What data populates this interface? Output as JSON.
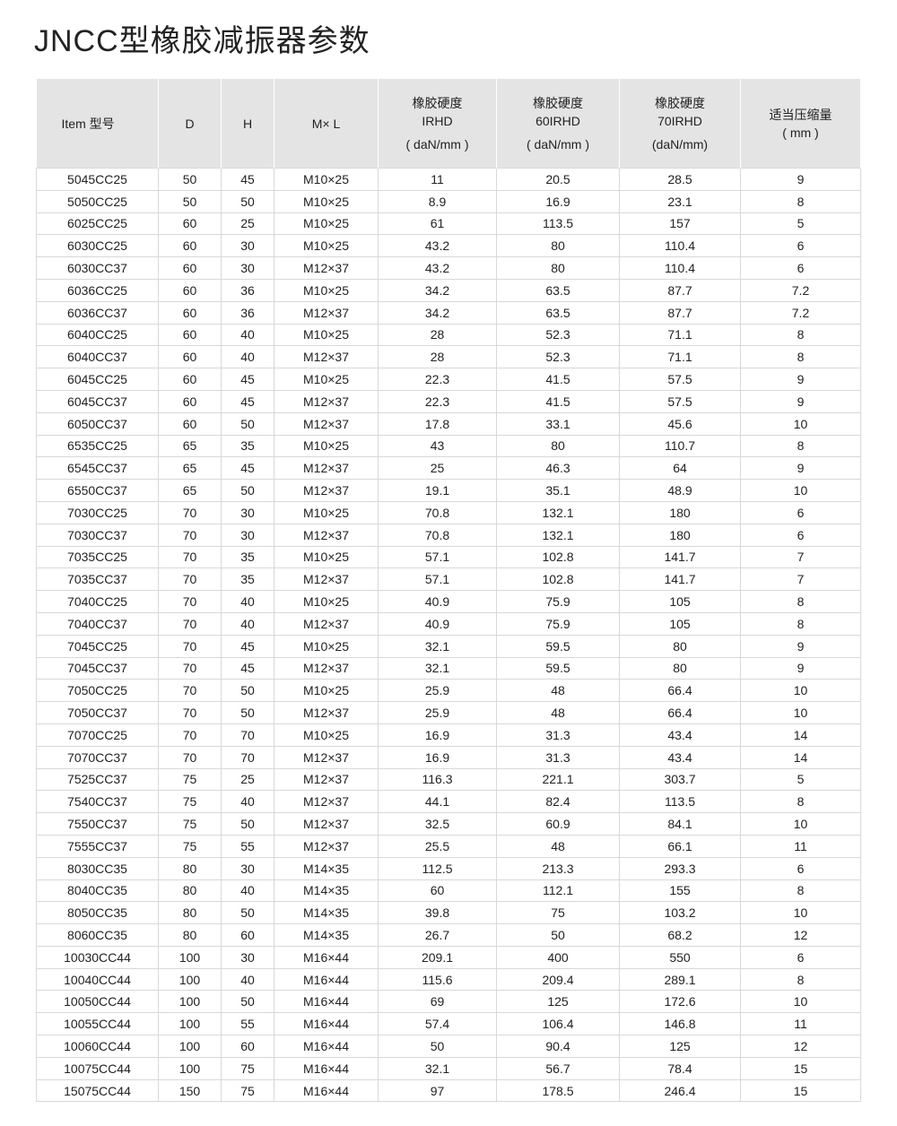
{
  "title": "JNCC型橡胶减振器参数",
  "headers": [
    [
      "Item 型号"
    ],
    [
      "D"
    ],
    [
      "H"
    ],
    [
      "M× L"
    ],
    [
      "橡胶硬度",
      "IRHD",
      "( daN/mm )"
    ],
    [
      "橡胶硬度",
      "60IRHD",
      "( daN/mm )"
    ],
    [
      "橡胶硬度",
      "70IRHD",
      "(daN/mm)"
    ],
    [
      "适当压缩量",
      "( mm )"
    ]
  ],
  "rows": [
    [
      "5045CC25",
      "50",
      "45",
      "M10×25",
      "11",
      "20.5",
      "28.5",
      "9"
    ],
    [
      "5050CC25",
      "50",
      "50",
      "M10×25",
      "8.9",
      "16.9",
      "23.1",
      "8"
    ],
    [
      "6025CC25",
      "60",
      "25",
      "M10×25",
      "61",
      "113.5",
      "157",
      "5"
    ],
    [
      "6030CC25",
      "60",
      "30",
      "M10×25",
      "43.2",
      "80",
      "110.4",
      "6"
    ],
    [
      "6030CC37",
      "60",
      "30",
      "M12×37",
      "43.2",
      "80",
      "110.4",
      "6"
    ],
    [
      "6036CC25",
      "60",
      "36",
      "M10×25",
      "34.2",
      "63.5",
      "87.7",
      "7.2"
    ],
    [
      "6036CC37",
      "60",
      "36",
      "M12×37",
      "34.2",
      "63.5",
      "87.7",
      "7.2"
    ],
    [
      "6040CC25",
      "60",
      "40",
      "M10×25",
      "28",
      "52.3",
      "71.1",
      "8"
    ],
    [
      "6040CC37",
      "60",
      "40",
      "M12×37",
      "28",
      "52.3",
      "71.1",
      "8"
    ],
    [
      "6045CC25",
      "60",
      "45",
      "M10×25",
      "22.3",
      "41.5",
      "57.5",
      "9"
    ],
    [
      "6045CC37",
      "60",
      "45",
      "M12×37",
      "22.3",
      "41.5",
      "57.5",
      "9"
    ],
    [
      "6050CC37",
      "60",
      "50",
      "M12×37",
      "17.8",
      "33.1",
      "45.6",
      "10"
    ],
    [
      "6535CC25",
      "65",
      "35",
      "M10×25",
      "43",
      "80",
      "110.7",
      "8"
    ],
    [
      "6545CC37",
      "65",
      "45",
      "M12×37",
      "25",
      "46.3",
      "64",
      "9"
    ],
    [
      "6550CC37",
      "65",
      "50",
      "M12×37",
      "19.1",
      "35.1",
      "48.9",
      "10"
    ],
    [
      "7030CC25",
      "70",
      "30",
      "M10×25",
      "70.8",
      "132.1",
      "180",
      "6"
    ],
    [
      "7030CC37",
      "70",
      "30",
      "M12×37",
      "70.8",
      "132.1",
      "180",
      "6"
    ],
    [
      "7035CC25",
      "70",
      "35",
      "M10×25",
      "57.1",
      "102.8",
      "141.7",
      "7"
    ],
    [
      "7035CC37",
      "70",
      "35",
      "M12×37",
      "57.1",
      "102.8",
      "141.7",
      "7"
    ],
    [
      "7040CC25",
      "70",
      "40",
      "M10×25",
      "40.9",
      "75.9",
      "105",
      "8"
    ],
    [
      "7040CC37",
      "70",
      "40",
      "M12×37",
      "40.9",
      "75.9",
      "105",
      "8"
    ],
    [
      "7045CC25",
      "70",
      "45",
      "M10×25",
      "32.1",
      "59.5",
      "80",
      "9"
    ],
    [
      "7045CC37",
      "70",
      "45",
      "M12×37",
      "32.1",
      "59.5",
      "80",
      "9"
    ],
    [
      "7050CC25",
      "70",
      "50",
      "M10×25",
      "25.9",
      "48",
      "66.4",
      "10"
    ],
    [
      "7050CC37",
      "70",
      "50",
      "M12×37",
      "25.9",
      "48",
      "66.4",
      "10"
    ],
    [
      "7070CC25",
      "70",
      "70",
      "M10×25",
      "16.9",
      "31.3",
      "43.4",
      "14"
    ],
    [
      "7070CC37",
      "70",
      "70",
      "M12×37",
      "16.9",
      "31.3",
      "43.4",
      "14"
    ],
    [
      "7525CC37",
      "75",
      "25",
      "M12×37",
      "116.3",
      "221.1",
      "303.7",
      "5"
    ],
    [
      "7540CC37",
      "75",
      "40",
      "M12×37",
      "44.1",
      "82.4",
      "113.5",
      "8"
    ],
    [
      "7550CC37",
      "75",
      "50",
      "M12×37",
      "32.5",
      "60.9",
      "84.1",
      "10"
    ],
    [
      "7555CC37",
      "75",
      "55",
      "M12×37",
      "25.5",
      "48",
      "66.1",
      "11"
    ],
    [
      "8030CC35",
      "80",
      "30",
      "M14×35",
      "112.5",
      "213.3",
      "293.3",
      "6"
    ],
    [
      "8040CC35",
      "80",
      "40",
      "M14×35",
      "60",
      "112.1",
      "155",
      "8"
    ],
    [
      "8050CC35",
      "80",
      "50",
      "M14×35",
      "39.8",
      "75",
      "103.2",
      "10"
    ],
    [
      "8060CC35",
      "80",
      "60",
      "M14×35",
      "26.7",
      "50",
      "68.2",
      "12"
    ],
    [
      "10030CC44",
      "100",
      "30",
      "M16×44",
      "209.1",
      "400",
      "550",
      "6"
    ],
    [
      "10040CC44",
      "100",
      "40",
      "M16×44",
      "115.6",
      "209.4",
      "289.1",
      "8"
    ],
    [
      "10050CC44",
      "100",
      "50",
      "M16×44",
      "69",
      "125",
      "172.6",
      "10"
    ],
    [
      "10055CC44",
      "100",
      "55",
      "M16×44",
      "57.4",
      "106.4",
      "146.8",
      "11"
    ],
    [
      "10060CC44",
      "100",
      "60",
      "M16×44",
      "50",
      "90.4",
      "125",
      "12"
    ],
    [
      "10075CC44",
      "100",
      "75",
      "M16×44",
      "32.1",
      "56.7",
      "78.4",
      "15"
    ],
    [
      "15075CC44",
      "150",
      "75",
      "M16×44",
      "97",
      "178.5",
      "246.4",
      "15"
    ]
  ]
}
